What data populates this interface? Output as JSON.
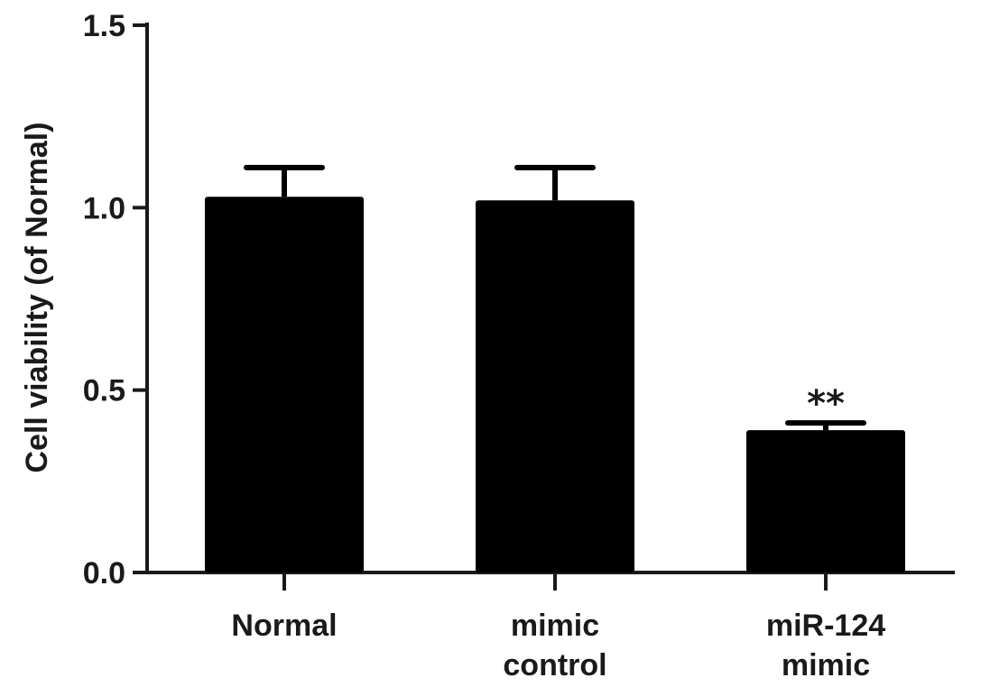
{
  "chart_data": {
    "type": "bar",
    "categories": [
      [
        "Normal"
      ],
      [
        "mimic",
        "control"
      ],
      [
        "miR-124",
        "mimic"
      ]
    ],
    "values": [
      1.03,
      1.02,
      0.39
    ],
    "errors": [
      0.08,
      0.09,
      0.02
    ],
    "annotations": [
      "",
      "",
      "**"
    ],
    "title": "",
    "xlabel": "",
    "ylabel": "Cell viability (of Normal)",
    "ylim": [
      0,
      1.5
    ],
    "yticks": [
      "0.0",
      "0.5",
      "1.0",
      "1.5"
    ],
    "bar_color": "#000000",
    "grid": false,
    "legend": "none"
  }
}
